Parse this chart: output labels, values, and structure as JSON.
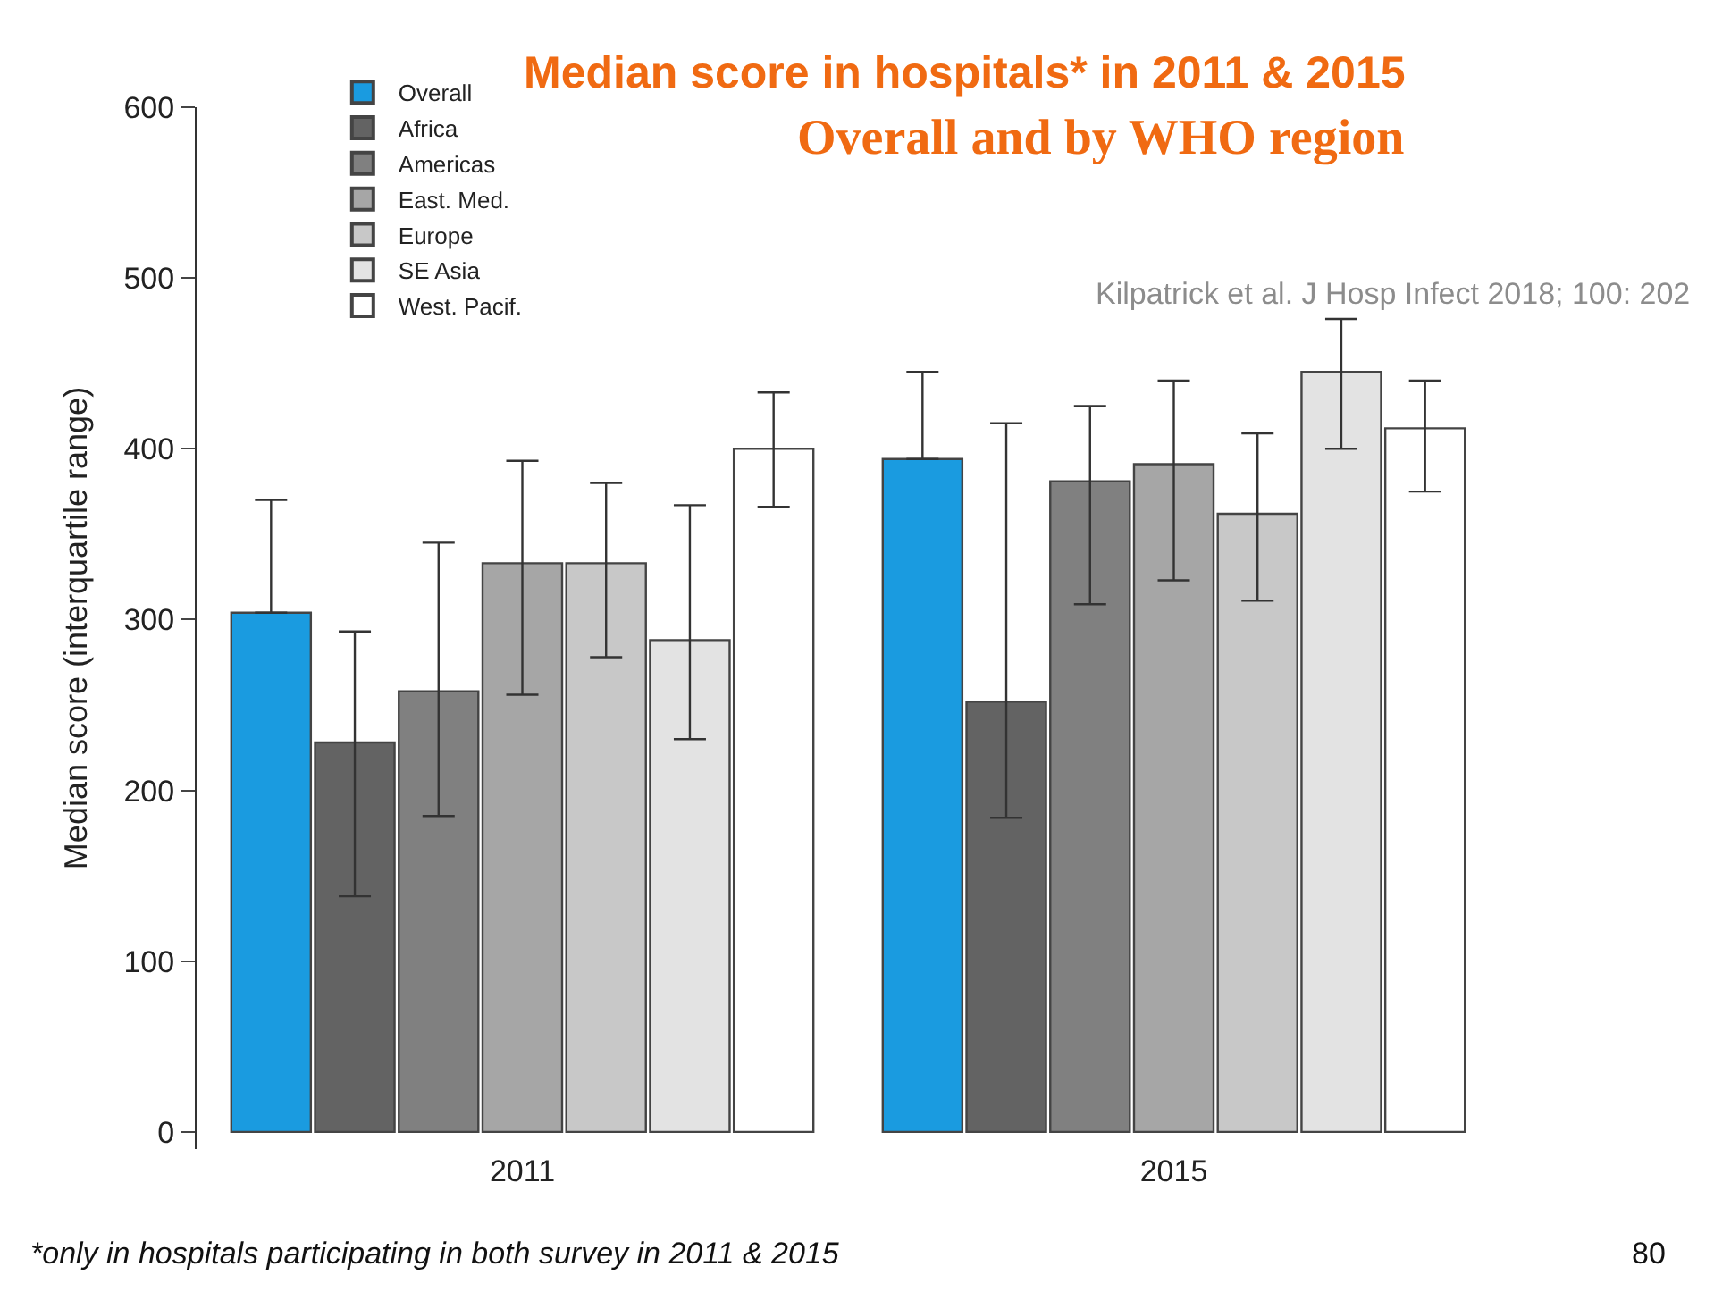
{
  "chart_data": {
    "type": "bar",
    "title": "Median score in hospitals* in 2011 & 2015",
    "subtitle": "Overall and by WHO region",
    "ylabel": "Median score (interquartile range)",
    "categories": [
      "2011",
      "2015"
    ],
    "series": [
      {
        "name": "Overall",
        "color": "#1a9be0",
        "values": [
          304,
          394
        ],
        "errors": [
          [
            304,
            370
          ],
          [
            394,
            445
          ]
        ]
      },
      {
        "name": "Africa",
        "color": "#636363",
        "values": [
          228,
          252
        ],
        "errors": [
          [
            138,
            293
          ],
          [
            184,
            415
          ]
        ]
      },
      {
        "name": "Americas",
        "color": "#808080",
        "values": [
          258,
          381
        ],
        "errors": [
          [
            185,
            345
          ],
          [
            309,
            425
          ]
        ]
      },
      {
        "name": "East. Med.",
        "color": "#a6a6a6",
        "values": [
          333,
          391
        ],
        "errors": [
          [
            256,
            393
          ],
          [
            323,
            440
          ]
        ]
      },
      {
        "name": "Europe",
        "color": "#c8c8c8",
        "values": [
          333,
          362
        ],
        "errors": [
          [
            278,
            380
          ],
          [
            311,
            409
          ]
        ]
      },
      {
        "name": "SE Asia",
        "color": "#e3e3e3",
        "values": [
          288,
          445
        ],
        "errors": [
          [
            230,
            367
          ],
          [
            400,
            476
          ]
        ]
      },
      {
        "name": "West. Pacif.",
        "color": "#ffffff",
        "values": [
          400,
          412
        ],
        "errors": [
          [
            366,
            433
          ],
          [
            375,
            440
          ]
        ]
      }
    ],
    "ylim": [
      -10,
      600
    ],
    "yticks": [
      0,
      100,
      200,
      300,
      400,
      500,
      600
    ],
    "legend": "top left",
    "annotations": [
      "Kilpatrick et al. J Hosp Infect 2018; 100: 202",
      "*only in hospitals participating in both survey in 2011 & 2015",
      "80"
    ]
  }
}
